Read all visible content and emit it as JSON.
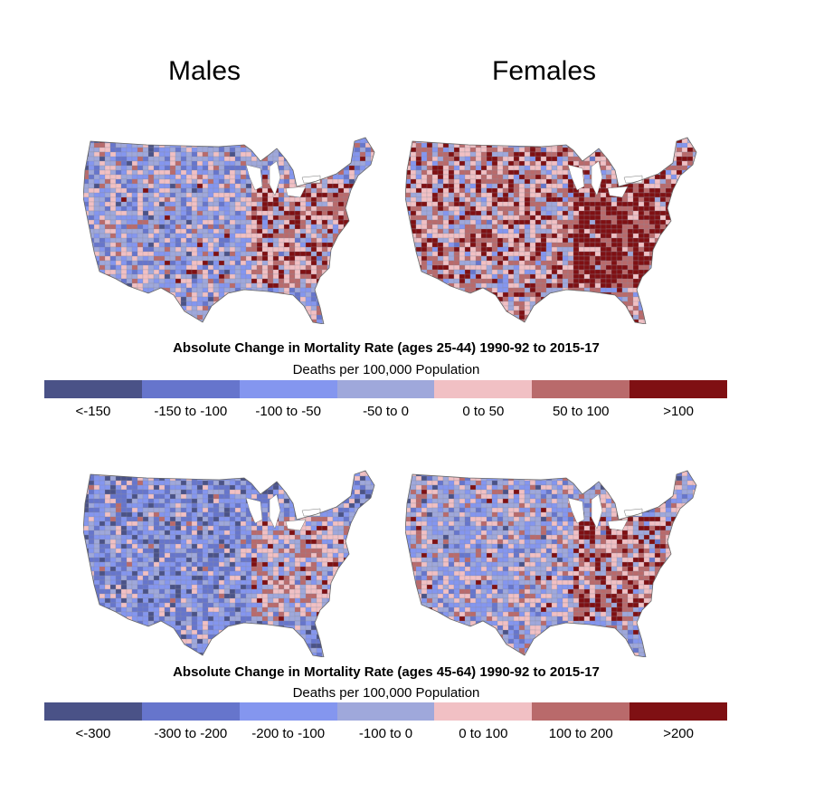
{
  "columns": {
    "left": "Males",
    "right": "Females"
  },
  "panels": [
    {
      "legend_title": "Absolute Change in Mortality Rate (ages 25-44) 1990-92 to 2015-17",
      "legend_subtitle": "Deaths per 100,000 Population",
      "bins": [
        "<-150",
        "-150 to -100",
        "-100 to -50",
        "-50 to 0",
        "0 to 50",
        "50 to 100",
        ">100"
      ]
    },
    {
      "legend_title": "Absolute Change in Mortality Rate (ages 45-64) 1990-92 to 2015-17",
      "legend_subtitle": "Deaths per 100,000 Population",
      "bins": [
        "<-300",
        "-300 to -200",
        "-200 to -100",
        "-100 to 0",
        "0 to 100",
        "100 to 200",
        ">200"
      ]
    }
  ],
  "colors": [
    "#4a5287",
    "#6675cc",
    "#8496ef",
    "#9fa8db",
    "#f1c0c4",
    "#b96a6b",
    "#7f1013"
  ],
  "maps": [
    {
      "name": "males-25-44-map",
      "skew": -0.05
    },
    {
      "name": "females-25-44-map",
      "skew": 0.55
    },
    {
      "name": "males-45-64-map",
      "skew": -0.45
    },
    {
      "name": "females-45-64-map",
      "skew": 0.0
    }
  ]
}
